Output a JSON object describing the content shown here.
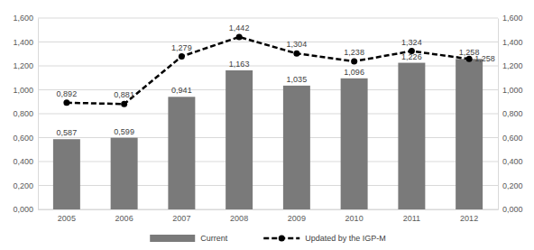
{
  "chart_data": {
    "type": "bar",
    "categories": [
      "2005",
      "2006",
      "2007",
      "2008",
      "2009",
      "2010",
      "2011",
      "2012"
    ],
    "series": [
      {
        "name": "Current",
        "type": "bar",
        "color": "#7a7a7a",
        "values": [
          0.587,
          0.599,
          0.941,
          1.163,
          1.035,
          1.096,
          1.226,
          1.258
        ],
        "value_labels": [
          "0,587",
          "0,599",
          "0,941",
          "1,163",
          "1,035",
          "1,096",
          "1,226",
          "1,258"
        ]
      },
      {
        "name": "Updated by the IGP-M",
        "type": "line",
        "color": "#000000",
        "line_style": "dashed",
        "marker": "circle",
        "axis": "y2",
        "values": [
          0.892,
          0.881,
          1.279,
          1.442,
          1.304,
          1.238,
          1.324,
          1.258
        ],
        "value_labels": [
          "0,892",
          "0,881",
          "1,279",
          "1,442",
          "1,304",
          "1,238",
          "1,324",
          "1,258"
        ]
      }
    ],
    "ylim": [
      0,
      1.6
    ],
    "yticks": [
      {
        "value": 0,
        "label": "0,000"
      },
      {
        "value": 0.2,
        "label": "0,200"
      },
      {
        "value": 0.4,
        "label": "0,400"
      },
      {
        "value": 0.6,
        "label": "0,600"
      },
      {
        "value": 0.8,
        "label": "0,800"
      },
      {
        "value": 1.0,
        "label": "1,000"
      },
      {
        "value": 1.2,
        "label": "1,200"
      },
      {
        "value": 1.4,
        "label": "1,400"
      },
      {
        "value": 1.6,
        "label": "1,600"
      }
    ],
    "y2lim": [
      0,
      1.6
    ],
    "y2ticks": [
      {
        "value": 0,
        "label": "0,000"
      },
      {
        "value": 0.2,
        "label": "0,200"
      },
      {
        "value": 0.4,
        "label": "0,400"
      },
      {
        "value": 0.6,
        "label": "0,600"
      },
      {
        "value": 0.8,
        "label": "0,800"
      },
      {
        "value": 1.0,
        "label": "1,000"
      },
      {
        "value": 1.2,
        "label": "1,200"
      },
      {
        "value": 1.4,
        "label": "1,400"
      },
      {
        "value": 1.6,
        "label": "1,600"
      }
    ],
    "grid": true,
    "legend": "bottom",
    "data_labels": true
  }
}
